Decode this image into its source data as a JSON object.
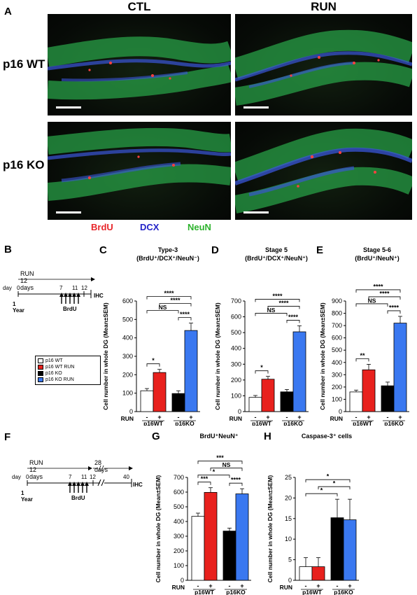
{
  "panelA": {
    "letter": "A",
    "col_headers": [
      "CTL",
      "RUN"
    ],
    "row_headers": [
      "p16 WT",
      "p16 KO"
    ],
    "stains": [
      {
        "label": "BrdU",
        "color": "#e8262a"
      },
      {
        "label": "DCX",
        "color": "#2323c8"
      },
      {
        "label": "NeuN",
        "color": "#2db32d"
      }
    ]
  },
  "panelB": {
    "letter": "B",
    "run_label": "RUN 12 days",
    "day_label": "day",
    "ticks": [
      "0",
      "7",
      "11",
      "12"
    ],
    "end_label": "IHC",
    "year_label": "1 Year",
    "brdu_label": "BrdU"
  },
  "panelF": {
    "letter": "F",
    "run_label": "RUN 12 days",
    "wait_label": "28 days",
    "day_label": "day",
    "ticks": [
      "0",
      "7",
      "11",
      "12",
      "40"
    ],
    "end_label": "IHC",
    "year_label": "1 Year",
    "brdu_label": "BrdU"
  },
  "legend": {
    "items": [
      {
        "label": "p16 WT",
        "color": "#ffffff"
      },
      {
        "label": "p16 WT RUN",
        "color": "#e8211d"
      },
      {
        "label": "p16 KO",
        "color": "#000000"
      },
      {
        "label": "p16 KO RUN",
        "color": "#3a78f0"
      }
    ]
  },
  "axis_common": {
    "run_label": "RUN",
    "run_signs": [
      "-",
      "+",
      "-",
      "+"
    ],
    "groups": [
      "p16WT",
      "p16KO"
    ]
  },
  "chart_data": [
    {
      "type": "bar",
      "letter": "C",
      "title": "Type-3",
      "subtitle": "(BrdU+/DCX+/NeuN-)",
      "ylabel": "Cell number in whole DG (Mean±SEM)",
      "ylim": [
        0,
        600
      ],
      "yticks": [
        0,
        100,
        200,
        300,
        400,
        500,
        600
      ],
      "categories": [
        "p16 WT",
        "p16 WT RUN",
        "p16 KO",
        "p16 KO RUN"
      ],
      "values": [
        113,
        212,
        98,
        440
      ],
      "errors": [
        12,
        17,
        15,
        40
      ],
      "colors": [
        "#ffffff",
        "#e8211d",
        "#000000",
        "#3a78f0"
      ],
      "annotations": [
        {
          "from": 0,
          "to": 1,
          "label": "*"
        },
        {
          "from": 0,
          "to": 2,
          "label": "NS"
        },
        {
          "from": 0,
          "to": 3,
          "label": "****"
        },
        {
          "from": 1,
          "to": 3,
          "label": "****"
        },
        {
          "from": 2,
          "to": 3,
          "label": "****"
        }
      ]
    },
    {
      "type": "bar",
      "letter": "D",
      "title": "Stage 5",
      "subtitle": "(BrdU+/DCX+/NeuN+)",
      "ylabel": "Cell number in whole DG (Mean±SEM)",
      "ylim": [
        0,
        700
      ],
      "yticks": [
        0,
        100,
        200,
        300,
        400,
        500,
        600,
        700
      ],
      "categories": [
        "p16 WT",
        "p16 WT RUN",
        "p16 KO",
        "p16 KO RUN"
      ],
      "values": [
        90,
        205,
        125,
        505
      ],
      "errors": [
        12,
        18,
        15,
        38
      ],
      "colors": [
        "#ffffff",
        "#e8211d",
        "#000000",
        "#3a78f0"
      ],
      "annotations": [
        {
          "from": 0,
          "to": 1,
          "label": "*"
        },
        {
          "from": 0,
          "to": 2,
          "label": "NS"
        },
        {
          "from": 0,
          "to": 3,
          "label": "****"
        },
        {
          "from": 1,
          "to": 3,
          "label": "****"
        },
        {
          "from": 2,
          "to": 3,
          "label": "****"
        }
      ]
    },
    {
      "type": "bar",
      "letter": "E",
      "title": "Stage 5-6",
      "subtitle": "(BrdU+/NeuN+)",
      "ylabel": "Cell number in whole DG (Mean±SEM)",
      "ylim": [
        0,
        900
      ],
      "yticks": [
        0,
        100,
        200,
        300,
        400,
        500,
        600,
        700,
        800,
        900
      ],
      "categories": [
        "p16 WT",
        "p16 WT RUN",
        "p16 KO",
        "p16 KO RUN"
      ],
      "values": [
        160,
        340,
        210,
        720
      ],
      "errors": [
        15,
        45,
        30,
        55
      ],
      "colors": [
        "#ffffff",
        "#e8211d",
        "#000000",
        "#3a78f0"
      ],
      "annotations": [
        {
          "from": 0,
          "to": 1,
          "label": "**"
        },
        {
          "from": 0,
          "to": 2,
          "label": "NS"
        },
        {
          "from": 0,
          "to": 3,
          "label": "****"
        },
        {
          "from": 1,
          "to": 3,
          "label": "****"
        },
        {
          "from": 2,
          "to": 3,
          "label": "****"
        }
      ]
    },
    {
      "type": "bar",
      "letter": "G",
      "title": "BrdU+NeuN+",
      "subtitle": "",
      "ylabel": "Cell number in whole DG (Mean±SEM)",
      "ylim": [
        0,
        700
      ],
      "yticks": [
        0,
        100,
        200,
        300,
        400,
        500,
        600,
        700
      ],
      "categories": [
        "p16 WT",
        "p16 WT RUN",
        "p16 KO",
        "p16 KO RUN"
      ],
      "values": [
        435,
        598,
        335,
        588
      ],
      "errors": [
        22,
        32,
        20,
        35
      ],
      "colors": [
        "#ffffff",
        "#e8211d",
        "#000000",
        "#3a78f0"
      ],
      "annotations": [
        {
          "from": 0,
          "to": 1,
          "label": "***"
        },
        {
          "from": 0,
          "to": 2,
          "label": "*"
        },
        {
          "from": 0,
          "to": 3,
          "label": "***"
        },
        {
          "from": 1,
          "to": 3,
          "label": "NS"
        },
        {
          "from": 2,
          "to": 3,
          "label": "****"
        }
      ]
    },
    {
      "type": "bar",
      "letter": "H",
      "title": "Caspase-3+ cells",
      "subtitle": "",
      "ylabel": "Cell number in whole DG (Mean±SEM)",
      "ylim": [
        0,
        25
      ],
      "yticks": [
        0,
        5,
        10,
        15,
        20,
        25
      ],
      "categories": [
        "p16 WT",
        "p16 WT RUN",
        "p16 KO",
        "p16 KO RUN"
      ],
      "values": [
        3.3,
        3.3,
        15.2,
        14.7
      ],
      "errors": [
        2.2,
        2.2,
        4.5,
        5.0
      ],
      "colors": [
        "#ffffff",
        "#e8211d",
        "#000000",
        "#3a78f0"
      ],
      "annotations": [
        {
          "from": 0,
          "to": 2,
          "label": "*"
        },
        {
          "from": 0,
          "to": 3,
          "label": "*"
        },
        {
          "from": 1,
          "to": 3,
          "label": "*"
        }
      ]
    }
  ]
}
